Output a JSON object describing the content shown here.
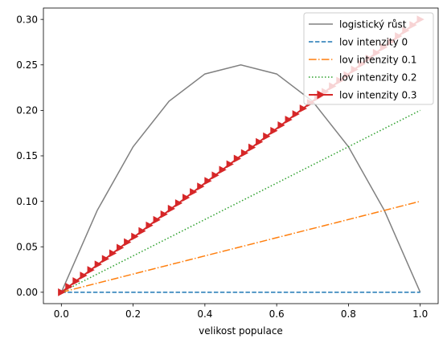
{
  "chart_data": {
    "type": "line",
    "title": "",
    "xlabel": "velikost populace",
    "ylabel": "",
    "xlim": [
      -0.05,
      1.05
    ],
    "ylim": [
      -0.0125,
      0.3125
    ],
    "xticks": [
      "0.0",
      "0.2",
      "0.4",
      "0.6",
      "0.8",
      "1.0"
    ],
    "yticks": [
      "0.00",
      "0.05",
      "0.10",
      "0.15",
      "0.20",
      "0.25",
      "0.30"
    ],
    "grid": false,
    "legend_position": "top-right",
    "series": [
      {
        "name": "logistický růst",
        "color": "#808080",
        "style": "solid",
        "marker": "none",
        "x": [
          0.0,
          0.1,
          0.2,
          0.3,
          0.4,
          0.5,
          0.6,
          0.7,
          0.8,
          0.9,
          1.0
        ],
        "y": [
          0.0,
          0.09,
          0.16,
          0.21,
          0.24,
          0.25,
          0.24,
          0.21,
          0.16,
          0.09,
          0.0
        ]
      },
      {
        "name": "lov intenzity 0",
        "color": "#1f77b4",
        "style": "dashed",
        "marker": "none",
        "x": [
          0.0,
          1.0
        ],
        "y": [
          0.0,
          0.0
        ]
      },
      {
        "name": "lov intenzity 0.1",
        "color": "#ff7f0e",
        "style": "dashdot",
        "marker": "none",
        "x": [
          0.0,
          1.0
        ],
        "y": [
          0.0,
          0.1
        ]
      },
      {
        "name": "lov intenzity 0.2",
        "color": "#2ca02c",
        "style": "dotted",
        "marker": "none",
        "x": [
          0.0,
          1.0
        ],
        "y": [
          0.0,
          0.2
        ]
      },
      {
        "name": "lov intenzity 0.3",
        "color": "#d62728",
        "style": "solid",
        "marker": "triangle-right",
        "x": [
          0.0,
          1.0
        ],
        "y": [
          0.0,
          0.3
        ],
        "marker_count": 50
      }
    ]
  }
}
